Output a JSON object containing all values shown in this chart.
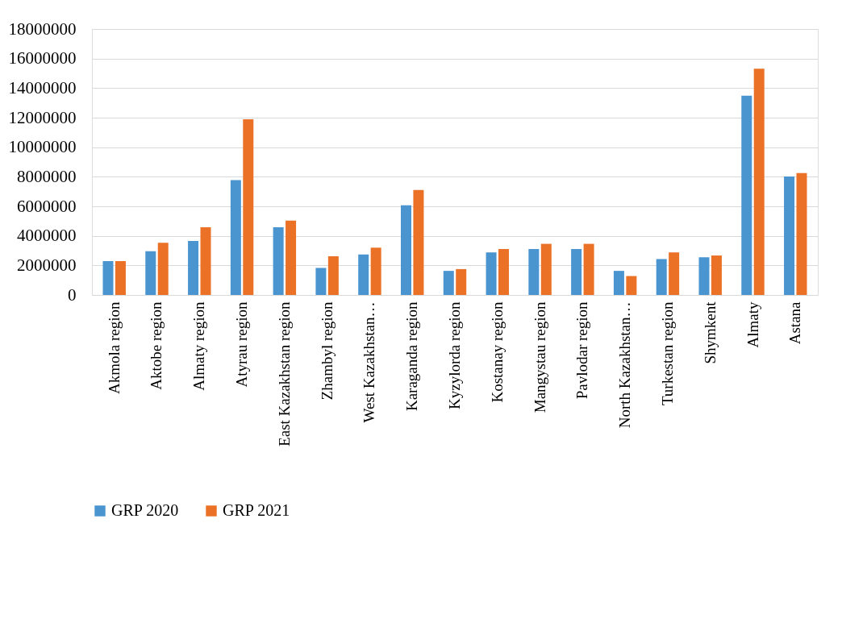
{
  "chart_data": {
    "type": "bar",
    "categories": [
      "Akmola region",
      "Aktobe region",
      "Almaty region",
      "Atyrau region",
      "East Kazakhstan region",
      "Zhambyl region",
      "West Kazakhstan…",
      "Karaganda region",
      "Kyzylorda region",
      "Kostanay region",
      "Mangystau region",
      "Pavlodar region",
      "North Kazakhstan…",
      "Turkestan region",
      "Shymkent",
      "Almaty",
      "Astana"
    ],
    "series": [
      {
        "name": "GRP 2020",
        "color": "#4a94d0",
        "values": [
          2290000,
          2960000,
          3650000,
          7770000,
          4580000,
          1830000,
          2740000,
          6070000,
          1630000,
          2880000,
          3110000,
          3110000,
          1630000,
          2430000,
          2550000,
          13480000,
          8020000
        ]
      },
      {
        "name": "GRP 2021",
        "color": "#ea7125",
        "values": [
          2290000,
          3530000,
          4580000,
          11890000,
          5030000,
          2620000,
          3200000,
          7100000,
          1750000,
          3110000,
          3460000,
          3460000,
          1280000,
          2880000,
          2670000,
          15310000,
          8250000
        ]
      }
    ],
    "ylim": [
      0,
      18000000
    ],
    "yticks": [
      0,
      2000000,
      4000000,
      6000000,
      8000000,
      10000000,
      12000000,
      14000000,
      16000000,
      18000000
    ],
    "grid": "y",
    "legend": "bottom"
  }
}
